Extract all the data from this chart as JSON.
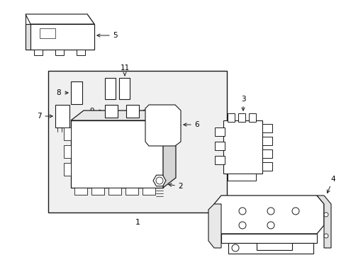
{
  "figsize": [
    4.89,
    3.6
  ],
  "dpi": 100,
  "bg": "#ffffff",
  "lc": "#1a1a1a",
  "box_fill": "#f0f0f0",
  "gray_fill": "#e8e8e8"
}
